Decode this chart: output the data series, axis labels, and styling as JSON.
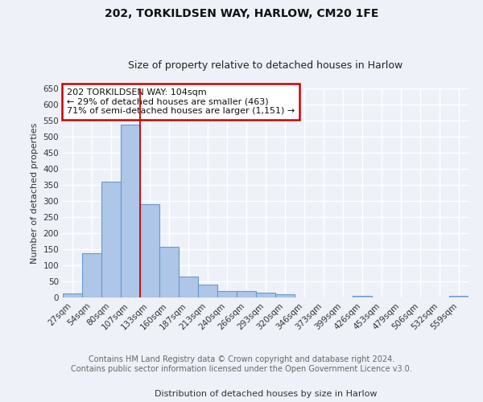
{
  "title1": "202, TORKILDSEN WAY, HARLOW, CM20 1FE",
  "title2": "Size of property relative to detached houses in Harlow",
  "xlabel": "Distribution of detached houses by size in Harlow",
  "ylabel": "Number of detached properties",
  "categories": [
    "27sqm",
    "54sqm",
    "80sqm",
    "107sqm",
    "133sqm",
    "160sqm",
    "187sqm",
    "213sqm",
    "240sqm",
    "266sqm",
    "293sqm",
    "320sqm",
    "346sqm",
    "373sqm",
    "399sqm",
    "426sqm",
    "453sqm",
    "479sqm",
    "506sqm",
    "532sqm",
    "559sqm"
  ],
  "values": [
    13,
    137,
    360,
    537,
    291,
    157,
    65,
    40,
    21,
    20,
    16,
    11,
    0,
    0,
    0,
    5,
    0,
    0,
    0,
    0,
    6
  ],
  "bar_color": "#aec6e8",
  "bar_edge_color": "#6699cc",
  "vline_color": "#cc0000",
  "vline_x_idx": 3,
  "annotation_text": "202 TORKILDSEN WAY: 104sqm\n← 29% of detached houses are smaller (463)\n71% of semi-detached houses are larger (1,151) →",
  "annotation_box_color": "#ffffff",
  "annotation_box_edge": "#cc0000",
  "ylim": [
    0,
    650
  ],
  "yticks": [
    0,
    50,
    100,
    150,
    200,
    250,
    300,
    350,
    400,
    450,
    500,
    550,
    600,
    650
  ],
  "footer_text": "Contains HM Land Registry data © Crown copyright and database right 2024.\nContains public sector information licensed under the Open Government Licence v3.0.",
  "bg_color": "#eef2f8",
  "plot_bg_color": "#eef2f8",
  "grid_color": "#ffffff",
  "title1_fontsize": 10,
  "title2_fontsize": 9,
  "axis_label_fontsize": 8,
  "tick_fontsize": 7.5,
  "footer_fontsize": 7
}
